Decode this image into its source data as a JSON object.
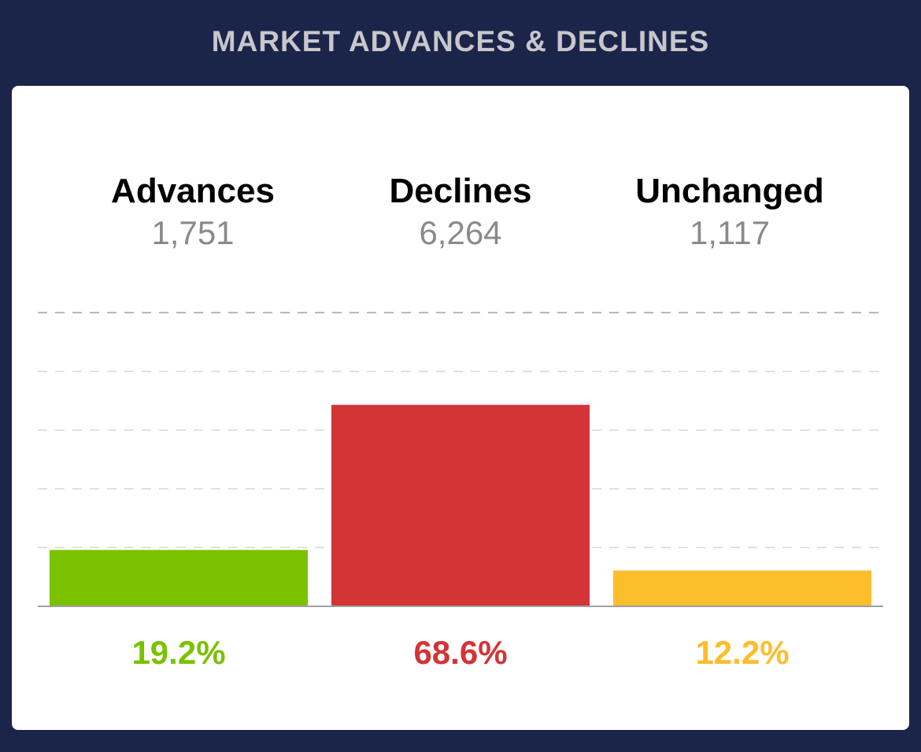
{
  "header": {
    "title": "MARKET ADVANCES & DECLINES"
  },
  "stats": [
    {
      "label": "Advances",
      "value": "1,751"
    },
    {
      "label": "Declines",
      "value": "6,264"
    },
    {
      "label": "Unchanged",
      "value": "1,117"
    }
  ],
  "colors": {
    "background": "#1b2549",
    "advances": "#7ac200",
    "declines": "#d33436",
    "unchanged": "#fdbe2b",
    "gridline": "#d8d8dc",
    "axis": "#a0a0a5"
  },
  "chart_data": {
    "type": "bar",
    "categories": [
      "Advances",
      "Declines",
      "Unchanged"
    ],
    "values": [
      19.2,
      68.6,
      12.2
    ],
    "value_labels": [
      "19.2%",
      "68.6%",
      "12.2%"
    ],
    "colors": [
      "#7ac200",
      "#d33436",
      "#fdbe2b"
    ],
    "ylim": [
      0,
      100
    ],
    "grid": true,
    "legend": "none"
  }
}
